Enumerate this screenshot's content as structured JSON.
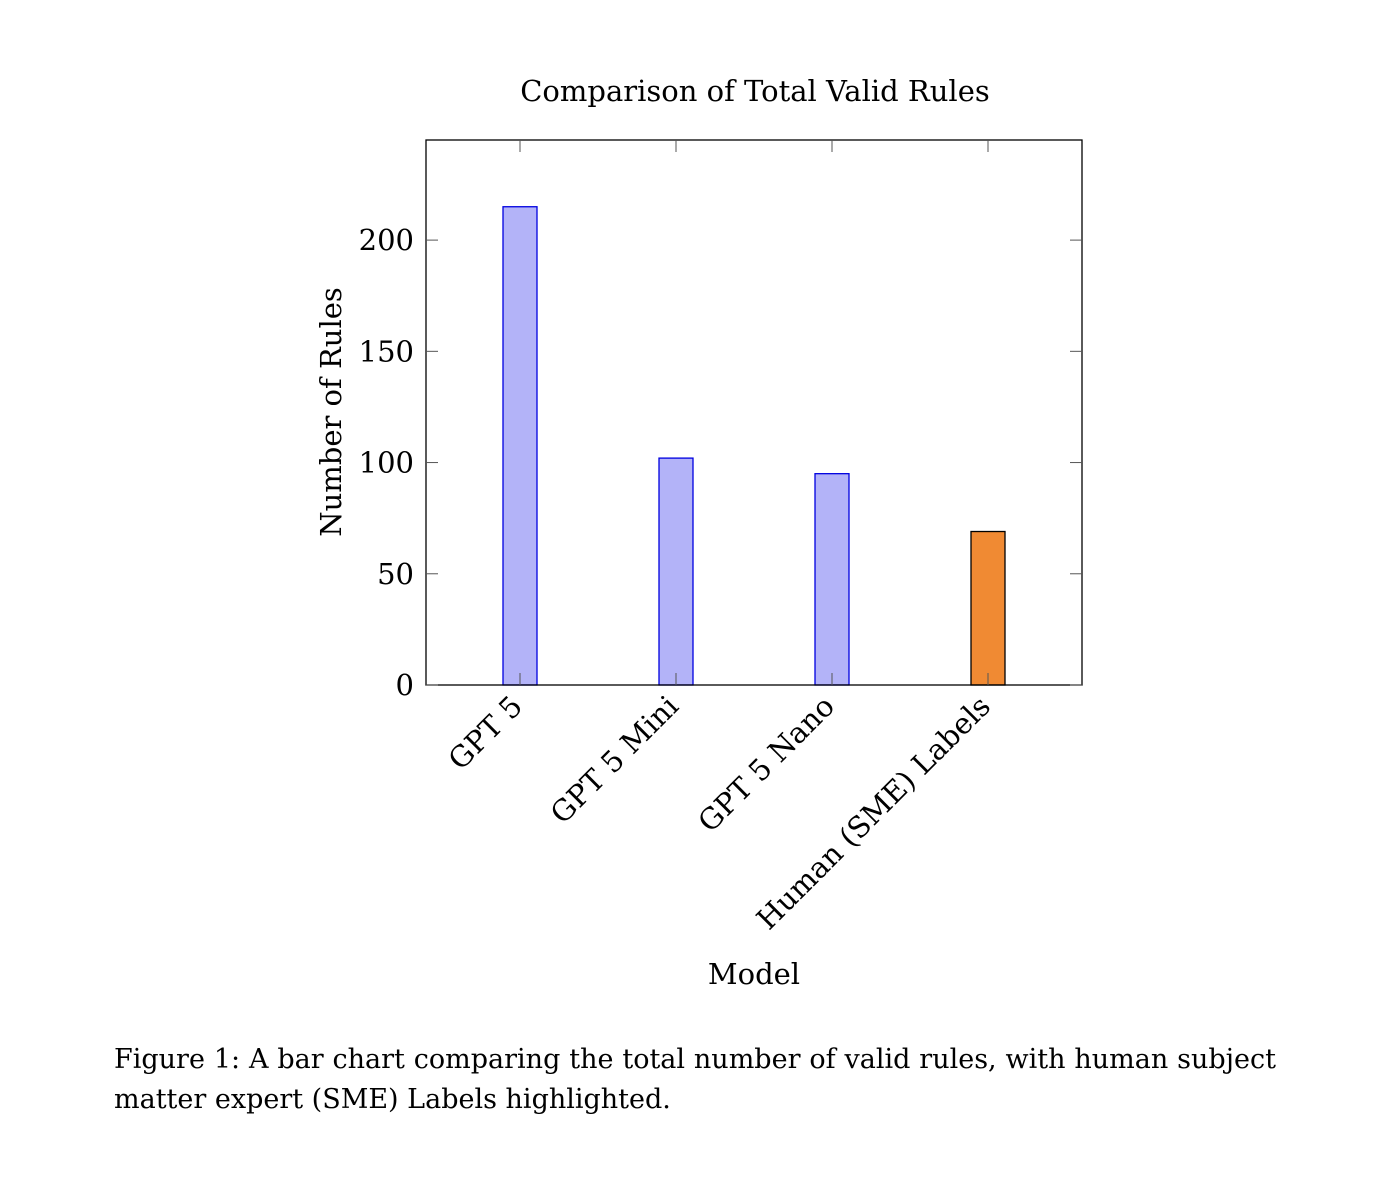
{
  "chart_data": {
    "type": "bar",
    "title": "Comparison of Total Valid Rules",
    "xlabel": "Model",
    "ylabel": "Number of Rules",
    "categories": [
      "GPT 5",
      "GPT 5 Mini",
      "GPT 5 Nano",
      "Human (SME) Labels"
    ],
    "values": [
      215,
      102,
      95,
      69
    ],
    "ylim": [
      0,
      245
    ],
    "yticks": [
      0,
      50,
      100,
      150,
      200
    ],
    "grid": false,
    "bar_colors": [
      "#b3b3f8",
      "#b3b3f8",
      "#b3b3f8",
      "#f08a33"
    ],
    "bar_edge_colors": [
      "#0000e0",
      "#0000e0",
      "#0000e0",
      "#000000"
    ],
    "highlighted_category": "Human (SME) Labels"
  },
  "caption": {
    "text": "Figure 1: A bar chart comparing the total number of valid rules, with human subject matter expert (SME) Labels highlighted."
  }
}
